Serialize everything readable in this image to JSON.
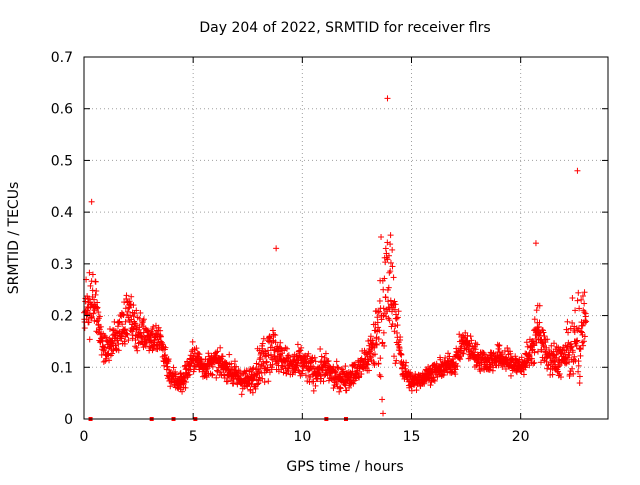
{
  "chart_data": {
    "type": "scatter",
    "title": "Day 204 of 2022, SRMTID for receiver flrs",
    "xlabel": "GPS time / hours",
    "ylabel": "SRMTID / TECUs",
    "xlim": [
      0,
      24
    ],
    "ylim": [
      0,
      0.7
    ],
    "x_ticks": [
      "0",
      "5",
      "10",
      "15",
      "20"
    ],
    "y_ticks": [
      "0",
      "0.1",
      "0.2",
      "0.3",
      "0.4",
      "0.5",
      "0.6",
      "0.7"
    ],
    "grid": true,
    "marker": "plus",
    "color": "#ff0000",
    "envelope_hours": [
      0.0,
      0.25,
      0.5,
      0.75,
      1.0,
      1.5,
      2.0,
      2.5,
      3.0,
      3.5,
      4.0,
      4.5,
      5.0,
      5.5,
      6.0,
      6.5,
      7.0,
      7.5,
      8.0,
      8.5,
      9.0,
      9.5,
      10.0,
      10.5,
      11.0,
      11.5,
      12.0,
      12.5,
      13.0,
      13.4,
      13.7,
      14.0,
      14.3,
      14.6,
      15.0,
      15.5,
      16.0,
      16.5,
      17.0,
      17.4,
      18.0,
      18.5,
      19.0,
      19.5,
      20.0,
      20.5,
      20.8,
      21.2,
      21.6,
      22.0,
      22.4,
      22.7,
      23.0
    ],
    "envelope_center": [
      0.2,
      0.24,
      0.22,
      0.16,
      0.13,
      0.16,
      0.2,
      0.17,
      0.16,
      0.15,
      0.08,
      0.07,
      0.12,
      0.1,
      0.11,
      0.1,
      0.08,
      0.07,
      0.1,
      0.14,
      0.12,
      0.1,
      0.11,
      0.09,
      0.1,
      0.08,
      0.08,
      0.09,
      0.12,
      0.16,
      0.22,
      0.26,
      0.18,
      0.1,
      0.07,
      0.08,
      0.09,
      0.1,
      0.11,
      0.15,
      0.12,
      0.11,
      0.12,
      0.11,
      0.1,
      0.13,
      0.18,
      0.12,
      0.11,
      0.12,
      0.14,
      0.16,
      0.2
    ],
    "envelope_spread": [
      0.06,
      0.12,
      0.1,
      0.06,
      0.04,
      0.06,
      0.09,
      0.06,
      0.05,
      0.06,
      0.04,
      0.04,
      0.05,
      0.04,
      0.04,
      0.04,
      0.04,
      0.04,
      0.06,
      0.1,
      0.05,
      0.05,
      0.06,
      0.05,
      0.05,
      0.04,
      0.04,
      0.04,
      0.06,
      0.12,
      0.3,
      0.24,
      0.12,
      0.04,
      0.03,
      0.03,
      0.03,
      0.03,
      0.04,
      0.05,
      0.04,
      0.04,
      0.04,
      0.04,
      0.04,
      0.05,
      0.1,
      0.05,
      0.06,
      0.06,
      0.12,
      0.18,
      0.06
    ],
    "points_per_hour": 90,
    "zero_markers_hours": [
      0.3,
      3.1,
      4.1,
      5.1,
      11.1,
      12.0
    ],
    "notable_peaks": [
      {
        "x": 0.35,
        "y": 0.42
      },
      {
        "x": 8.8,
        "y": 0.33
      },
      {
        "x": 13.9,
        "y": 0.62
      },
      {
        "x": 20.7,
        "y": 0.34
      },
      {
        "x": 22.6,
        "y": 0.48
      }
    ]
  }
}
